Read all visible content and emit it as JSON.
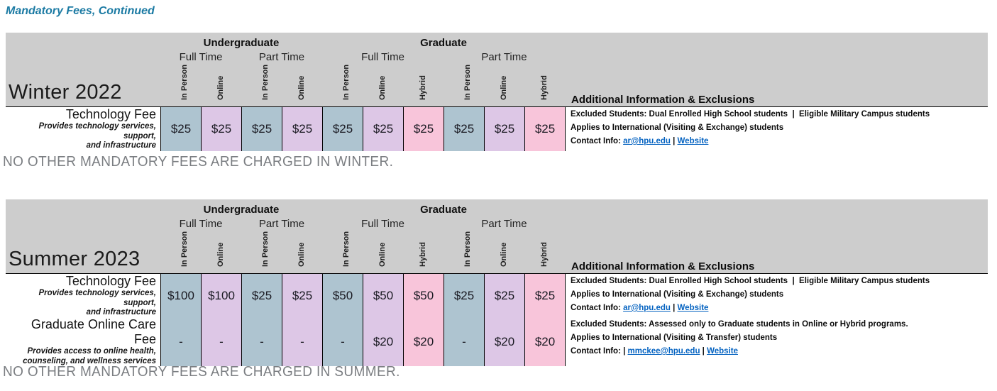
{
  "page": {
    "title": "Mandatory Fees, Continued"
  },
  "colors": {
    "header_bg": "#cdcdcd",
    "in_person": "#aec4d0",
    "online": "#ddc7e6",
    "hybrid": "#f8c5da",
    "link": "#0563c1",
    "title": "#1b7aa3",
    "note": "#7b7e82"
  },
  "header": {
    "groups": [
      {
        "label": "Undergraduate",
        "span": 4
      },
      {
        "label": "Graduate",
        "span": 6
      }
    ],
    "subgroups": [
      {
        "label": "Full Time",
        "span": 2
      },
      {
        "label": "Part Time",
        "span": 2
      },
      {
        "label": "Full Time",
        "span": 3
      },
      {
        "label": "Part Time",
        "span": 3
      }
    ],
    "modes": [
      {
        "label": "In Person",
        "lines": [
          "In",
          "Person"
        ],
        "type": "in_person"
      },
      {
        "label": "Online",
        "lines": [
          "Online"
        ],
        "type": "online"
      },
      {
        "label": "In Person",
        "lines": [
          "In",
          "Person"
        ],
        "type": "in_person"
      },
      {
        "label": "Online",
        "lines": [
          "Online"
        ],
        "type": "online"
      },
      {
        "label": "In Person",
        "lines": [
          "In",
          "Person"
        ],
        "type": "in_person"
      },
      {
        "label": "Online",
        "lines": [
          "Online"
        ],
        "type": "online"
      },
      {
        "label": "Hybrid",
        "lines": [
          "Hybrid"
        ],
        "type": "hybrid"
      },
      {
        "label": "In Person",
        "lines": [
          "In",
          "Person"
        ],
        "type": "in_person"
      },
      {
        "label": "Online",
        "lines": [
          "Online"
        ],
        "type": "online"
      },
      {
        "label": "Hybrid",
        "lines": [
          "Hybrid"
        ],
        "type": "hybrid"
      }
    ],
    "info_header": "Additional Information & Exclusions"
  },
  "tables": [
    {
      "season": "Winter 2022",
      "note": "NO OTHER MANDATORY FEES ARE CHARGED IN WINTER.",
      "fees": [
        {
          "name": "Technology Fee",
          "description": "Provides technology services, support,\nand infrastructure",
          "values": [
            "$25",
            "$25",
            "$25",
            "$25",
            "$25",
            "$25",
            "$25",
            "$25",
            "$25",
            "$25"
          ],
          "info": [
            [
              {
                "text": "Excluded Students: Dual Enrolled High School students  |  Eligible Military Campus students",
                "link": false
              }
            ],
            [
              {
                "text": "Applies to International (Visiting & Exchange) students",
                "link": false
              }
            ],
            [
              {
                "text": "Contact Info: ",
                "link": false
              },
              {
                "text": "ar@hpu.edu",
                "link": true
              },
              {
                "text": " | ",
                "link": false
              },
              {
                "text": "Website",
                "link": true
              }
            ]
          ]
        }
      ]
    },
    {
      "season": "Summer 2023",
      "note": "NO OTHER MANDATORY FEES ARE CHARGED IN SUMMER.",
      "fees": [
        {
          "name": "Technology Fee",
          "description": "Provides technology services, support,\nand infrastructure",
          "values": [
            "$100",
            "$100",
            "$25",
            "$25",
            "$50",
            "$50",
            "$50",
            "$25",
            "$25",
            "$25"
          ],
          "info": [
            [
              {
                "text": "Excluded Students: Dual Enrolled High School students  |  Eligible Military Campus students",
                "link": false
              }
            ],
            [
              {
                "text": "Applies to International (Visiting & Exchange) students",
                "link": false
              }
            ],
            [
              {
                "text": "Contact Info: ",
                "link": false
              },
              {
                "text": "ar@hpu.edu",
                "link": true
              },
              {
                "text": " | ",
                "link": false
              },
              {
                "text": "Website",
                "link": true
              }
            ]
          ]
        },
        {
          "name": "Graduate Online Care Fee",
          "description": "Provides access to online health,\ncounseling, and wellness services",
          "values": [
            "-",
            "-",
            "-",
            "-",
            "-",
            "$20",
            "$20",
            "-",
            "$20",
            "$20"
          ],
          "info": [
            [
              {
                "text": "Excluded Students: Assessed only to Graduate students in Online or Hybrid programs.",
                "link": false
              }
            ],
            [
              {
                "text": "Applies to International (Visiting & Transfer) students",
                "link": false
              }
            ],
            [
              {
                "text": "Contact Info: | ",
                "link": false
              },
              {
                "text": "mmckee@hpu.edu",
                "link": true
              },
              {
                "text": " | ",
                "link": false
              },
              {
                "text": "Website",
                "link": true
              }
            ]
          ]
        }
      ]
    }
  ]
}
